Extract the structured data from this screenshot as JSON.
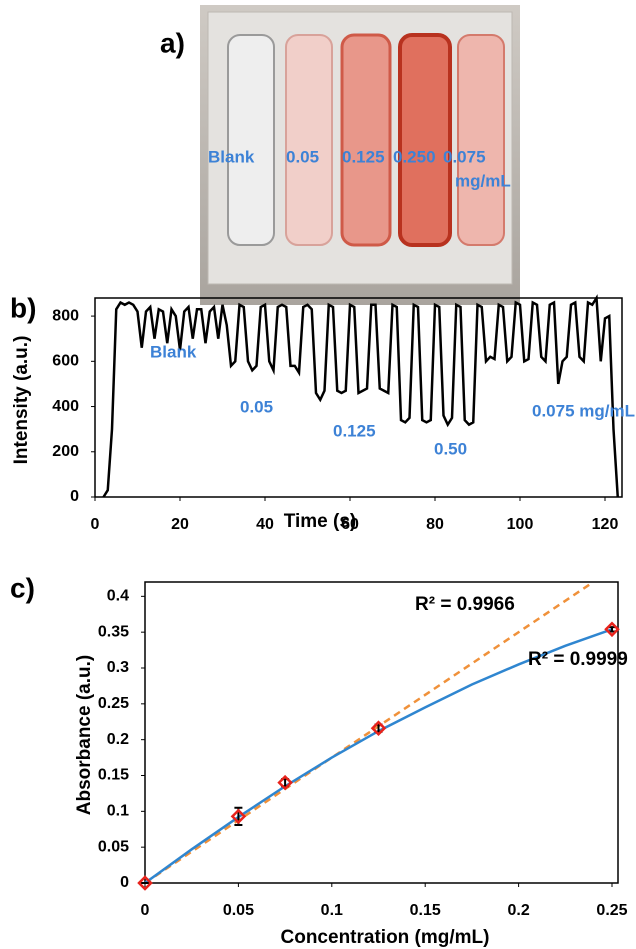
{
  "panel_a": {
    "label": "a)",
    "labels": [
      "Blank",
      "0.05",
      "0.125",
      "0.250",
      "0.075",
      "mg/mL"
    ]
  },
  "chart_data": [
    {
      "type": "line",
      "panel_label": "b)",
      "xlabel": "Time (s)",
      "ylabel": "Intensity (a.u.)",
      "xlim": [
        0,
        124
      ],
      "xticks": [
        0,
        20,
        40,
        60,
        80,
        100,
        120
      ],
      "ylim": [
        0,
        880
      ],
      "yticks": [
        0,
        200,
        400,
        600,
        800
      ],
      "annotations": [
        "Blank",
        "0.05",
        "0.125",
        "0.50",
        "0.075 mg/mL"
      ],
      "series": [
        {
          "color": "#000000",
          "x": [
            2,
            3,
            4,
            5,
            6,
            7,
            8,
            9,
            10,
            11,
            12,
            13,
            14,
            15,
            16,
            17,
            18,
            19,
            20,
            21,
            22,
            23,
            24,
            25,
            26,
            27,
            28,
            29,
            30,
            31,
            32,
            33,
            34,
            35,
            36,
            37,
            38,
            39,
            40,
            41,
            42,
            43,
            44,
            45,
            46,
            47,
            48,
            49,
            50,
            51,
            52,
            53,
            54,
            55,
            56,
            57,
            58,
            59,
            60,
            61,
            62,
            63,
            64,
            65,
            66,
            67,
            68,
            69,
            70,
            71,
            72,
            73,
            74,
            75,
            76,
            77,
            78,
            79,
            80,
            81,
            82,
            83,
            84,
            85,
            86,
            87,
            88,
            89,
            90,
            91,
            92,
            93,
            94,
            95,
            96,
            97,
            98,
            99,
            100,
            101,
            102,
            103,
            104,
            105,
            106,
            107,
            108,
            109,
            110,
            111,
            112,
            113,
            114,
            115,
            116,
            117,
            118,
            119,
            120,
            121,
            122,
            123
          ],
          "values": [
            0,
            30,
            300,
            830,
            860,
            850,
            860,
            850,
            820,
            660,
            820,
            840,
            700,
            830,
            820,
            680,
            830,
            800,
            650,
            820,
            840,
            700,
            830,
            830,
            680,
            820,
            840,
            700,
            850,
            760,
            580,
            600,
            850,
            840,
            600,
            560,
            580,
            840,
            850,
            600,
            560,
            840,
            850,
            840,
            580,
            580,
            550,
            840,
            850,
            830,
            460,
            430,
            470,
            850,
            840,
            470,
            460,
            470,
            850,
            840,
            460,
            470,
            480,
            850,
            850,
            480,
            470,
            460,
            850,
            840,
            340,
            330,
            350,
            850,
            840,
            340,
            330,
            340,
            850,
            840,
            360,
            320,
            350,
            850,
            840,
            340,
            320,
            330,
            850,
            840,
            600,
            620,
            610,
            850,
            840,
            600,
            620,
            860,
            850,
            600,
            610,
            860,
            850,
            620,
            600,
            850,
            860,
            500,
            600,
            620,
            850,
            860,
            620,
            600,
            860,
            850,
            880,
            600,
            790,
            800,
            300,
            0
          ]
        }
      ]
    },
    {
      "type": "scatter",
      "panel_label": "c)",
      "xlabel": "Concentration (mg/mL)",
      "ylabel": "Absorbance (a.u.)",
      "xlim": [
        0,
        0.25
      ],
      "xticks": [
        0,
        0.05,
        0.1,
        0.15,
        0.2,
        0.25
      ],
      "ylim": [
        0,
        0.42
      ],
      "yticks": [
        0,
        0.05,
        0.1,
        0.15,
        0.2,
        0.25,
        0.3,
        0.35,
        0.4
      ],
      "annotations": [
        "R² = 0.9966",
        "R² = 0.9999"
      ],
      "series": [
        {
          "style": "dashed",
          "color": "#f0913a",
          "x": [
            0,
            0.24
          ],
          "values": [
            0,
            0.42
          ]
        },
        {
          "style": "solid",
          "color": "#2f86d0",
          "x": [
            0,
            0.025,
            0.05,
            0.075,
            0.1,
            0.125,
            0.15,
            0.175,
            0.2,
            0.225,
            0.25
          ],
          "values": [
            0,
            0.047,
            0.092,
            0.135,
            0.175,
            0.212,
            0.245,
            0.277,
            0.305,
            0.331,
            0.354
          ]
        },
        {
          "style": "markers",
          "color": "#e8231c",
          "x": [
            0,
            0.05,
            0.075,
            0.125,
            0.25
          ],
          "values": [
            0,
            0.093,
            0.14,
            0.216,
            0.354
          ],
          "errors": [
            0,
            0.012,
            0.005,
            0.005,
            0.003
          ]
        }
      ]
    }
  ]
}
